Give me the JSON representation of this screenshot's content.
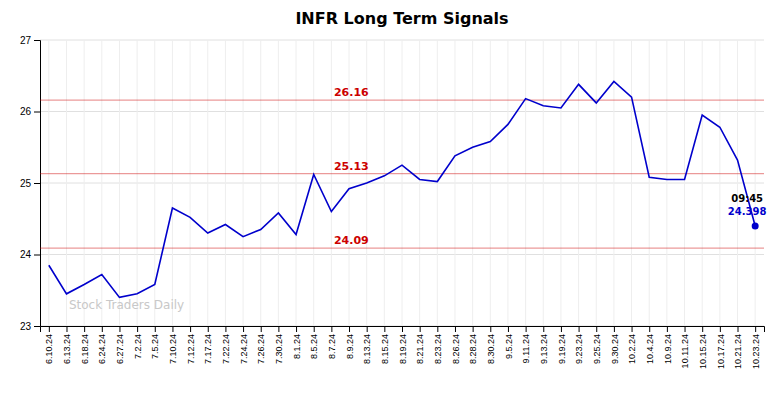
{
  "chart_data": {
    "type": "line",
    "title": "INFR Long Term Signals",
    "categories": [
      "6.10.24",
      "6.13.24",
      "6.18.24",
      "6.24.24",
      "6.27.24",
      "7.2.24",
      "7.5.24",
      "7.10.24",
      "7.12.24",
      "7.17.24",
      "7.22.24",
      "7.24.24",
      "7.26.24",
      "7.30.24",
      "8.1.24",
      "8.5.24",
      "8.7.24",
      "8.9.24",
      "8.13.24",
      "8.15.24",
      "8.19.24",
      "8.21.24",
      "8.23.24",
      "8.26.24",
      "8.28.24",
      "8.30.24",
      "9.5.24",
      "9.11.24",
      "9.13.24",
      "9.19.24",
      "9.23.24",
      "9.25.24",
      "9.30.24",
      "10.2.24",
      "10.4.24",
      "10.9.24",
      "10.11.24",
      "10.15.24",
      "10.17.24",
      "10.21.24",
      "10.23.24"
    ],
    "values": [
      23.85,
      23.45,
      23.58,
      23.72,
      23.4,
      23.45,
      23.58,
      24.65,
      24.52,
      24.3,
      24.42,
      24.25,
      24.35,
      24.58,
      24.28,
      25.12,
      24.6,
      24.92,
      25.0,
      25.1,
      25.25,
      25.05,
      25.02,
      25.38,
      25.5,
      25.58,
      25.82,
      26.18,
      26.08,
      26.05,
      26.38,
      26.12,
      26.42,
      26.2,
      25.08,
      25.05,
      25.05,
      25.95,
      25.78,
      25.32,
      24.398
    ],
    "color": "#0000cc",
    "ylim": [
      23,
      27
    ],
    "yticks": [
      23,
      24,
      25,
      26,
      27
    ],
    "grid": true,
    "hlines": [
      {
        "value": 26.16,
        "color": "#cc0000"
      },
      {
        "value": 25.13,
        "color": "#cc0000"
      },
      {
        "value": 24.09,
        "color": "#cc0000"
      }
    ],
    "annotations": [
      {
        "text": "09:45",
        "color": "#000000"
      },
      {
        "text": "24.398",
        "color": "#0000cc"
      }
    ],
    "watermark": "Stock Traders Daily"
  }
}
